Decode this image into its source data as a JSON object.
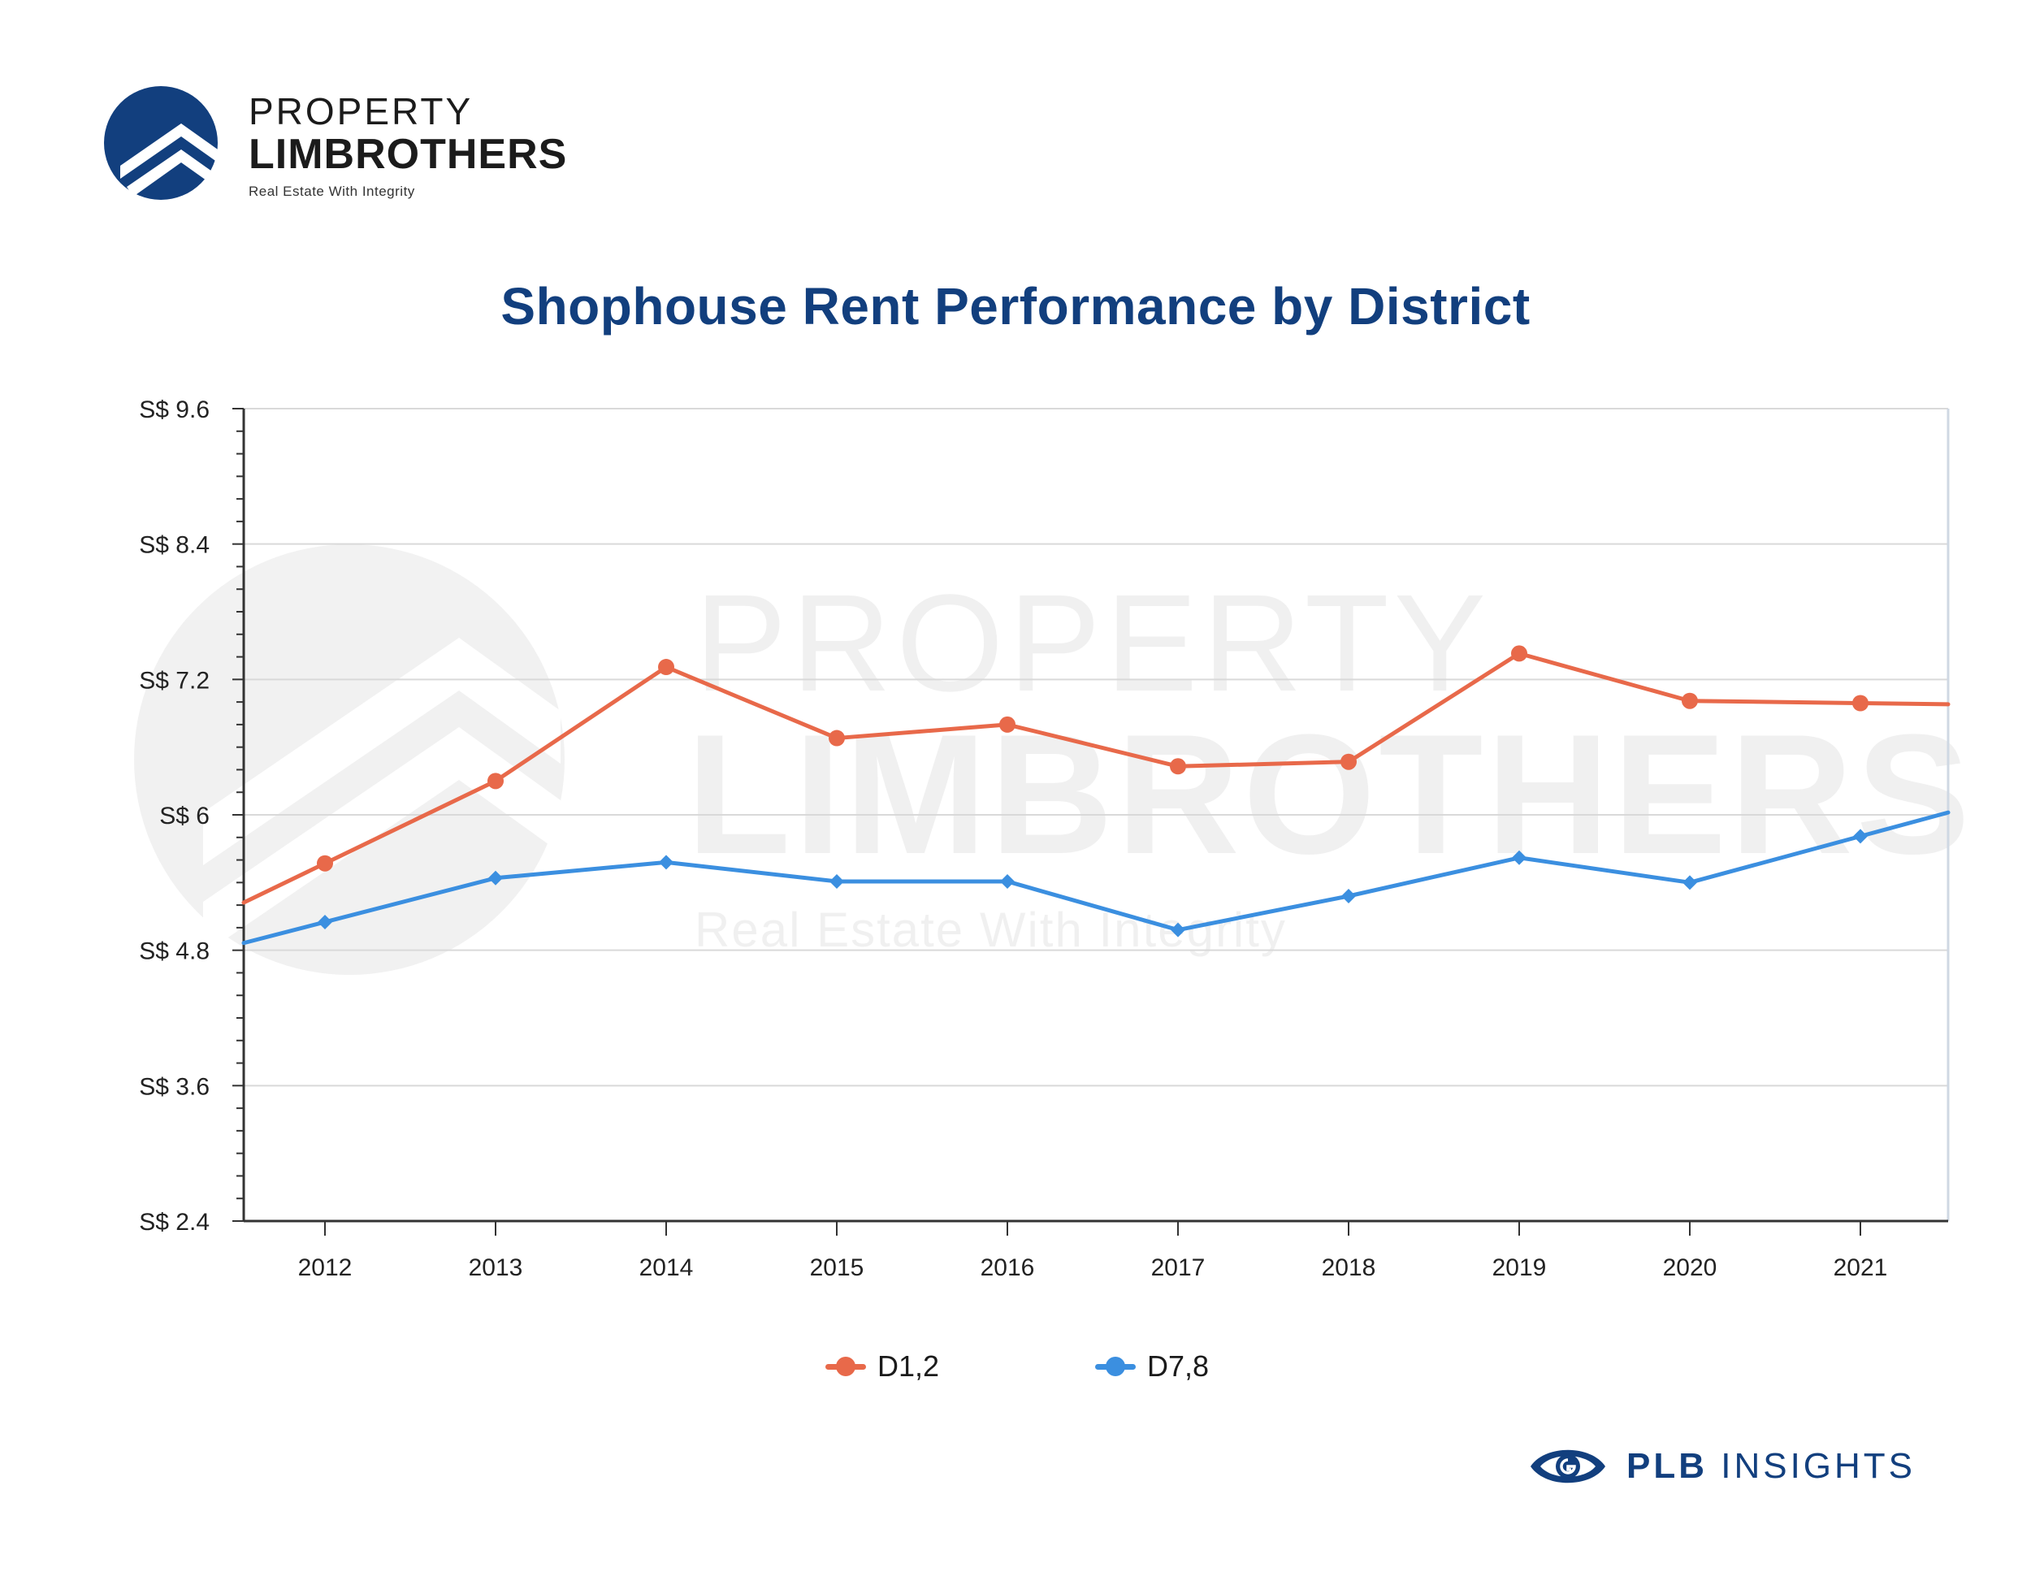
{
  "brand": {
    "line1": "PROPERTY",
    "line2": "LIMBROTHERS",
    "tagline": "Real Estate With Integrity"
  },
  "watermark": {
    "line1": "PROPERTY",
    "line2": "LIMBROTHERS",
    "line3": "Real Estate With Integrity"
  },
  "footer": {
    "bold": "PLB",
    "rest": " INSIGHTS",
    "icon": "eye-icon"
  },
  "colors": {
    "title": "#123f7e",
    "d12": "#e8694a",
    "d78": "#3b8fe0",
    "grid": "#d9d9d9",
    "axis": "#333333"
  },
  "chart_data": {
    "type": "line",
    "title": "Shophouse Rent Performance by District",
    "xlabel": "",
    "ylabel": "",
    "categories": [
      "2012",
      "2013",
      "2014",
      "2015",
      "2016",
      "2017",
      "2018",
      "2019",
      "2020",
      "2021"
    ],
    "yticks": [
      "S$ 2.4",
      "S$ 3.6",
      "S$ 4.8",
      "S$ 6",
      "S$ 7.2",
      "S$ 8.4",
      "S$ 9.6"
    ],
    "ylim": [
      2.4,
      9.6
    ],
    "grid": true,
    "legend_position": "bottom",
    "series": [
      {
        "name": "D1,2",
        "values": [
          5.57,
          6.3,
          7.31,
          6.68,
          6.8,
          6.43,
          6.47,
          7.43,
          7.01,
          6.99
        ],
        "marker": "circle"
      },
      {
        "name": "D7,8",
        "values": [
          5.05,
          5.44,
          5.58,
          5.41,
          5.41,
          4.98,
          5.28,
          5.62,
          5.4,
          5.81
        ],
        "marker": "diamond"
      }
    ]
  }
}
